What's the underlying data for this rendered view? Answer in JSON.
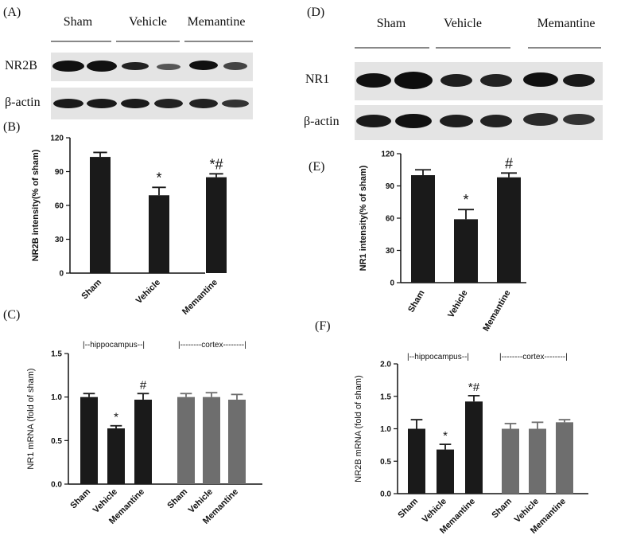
{
  "panels": {
    "A": {
      "label": "(A)",
      "groups": [
        "Sham",
        "Vehicle",
        "Memantine"
      ],
      "rows": [
        "NR2B",
        "β-actin"
      ]
    },
    "D": {
      "label": "(D)",
      "groups": [
        "Sham",
        "Vehicle",
        "Memantine"
      ],
      "rows": [
        "NR1",
        "β-actin"
      ]
    },
    "C": {
      "label": "(C)",
      "regions": [
        "|--hippocampus--|",
        "|--------cortex--------|"
      ]
    },
    "F": {
      "label": "(F)",
      "regions": [
        "|--hippocampus--|",
        "|--------cortex--------|"
      ]
    }
  },
  "colors": {
    "bar_black": "#1a1a1a",
    "bar_gray": "#6e6e6e",
    "axis": "#111111",
    "blot_bg": "#e4e4e4"
  },
  "chart_data": [
    {
      "id": "B",
      "type": "bar",
      "label": "(B)",
      "categories": [
        "Sham",
        "Vehicle",
        "Memantine"
      ],
      "values": [
        103,
        69,
        85
      ],
      "errors": [
        4,
        7,
        3
      ],
      "significance": [
        "",
        "*",
        "*#"
      ],
      "ylabel": "NR2B intensity(% of sham)",
      "ylim": [
        0,
        120
      ],
      "yticks": [
        0,
        30,
        60,
        90,
        120
      ]
    },
    {
      "id": "E",
      "type": "bar",
      "label": "(E)",
      "categories": [
        "Sham",
        "Vehicle",
        "Memantine"
      ],
      "values": [
        100,
        59,
        98
      ],
      "errors": [
        5,
        9,
        4
      ],
      "significance": [
        "",
        "*",
        "#"
      ],
      "ylabel": "NR1 intensity(% of sham)",
      "ylim": [
        0,
        120
      ],
      "yticks": [
        0,
        30,
        60,
        90,
        120
      ]
    },
    {
      "id": "C",
      "type": "bar",
      "categories": [
        "Sham",
        "Vehicle",
        "Memantine",
        "Sham",
        "Vehicle",
        "Memantine"
      ],
      "values": [
        1.0,
        0.64,
        0.97,
        1.0,
        1.0,
        0.97
      ],
      "errors": [
        0.04,
        0.03,
        0.07,
        0.04,
        0.05,
        0.06
      ],
      "significance": [
        "",
        "*",
        "#",
        "",
        "",
        ""
      ],
      "bar_colors": [
        "black",
        "black",
        "black",
        "gray",
        "gray",
        "gray"
      ],
      "ylabel": "NR1 mRNA (fold of sham)",
      "ylim": [
        0,
        1.5
      ],
      "yticks": [
        "0.0",
        "0.5",
        "1.0",
        "1.5"
      ]
    },
    {
      "id": "F",
      "type": "bar",
      "categories": [
        "Sham",
        "Vehicle",
        "Memantine",
        "Sham",
        "Vehicle",
        "Memantine"
      ],
      "values": [
        1.0,
        0.68,
        1.42,
        1.0,
        1.0,
        1.1
      ],
      "errors": [
        0.14,
        0.08,
        0.09,
        0.08,
        0.1,
        0.04
      ],
      "significance": [
        "",
        "*",
        "*#",
        "",
        "",
        ""
      ],
      "bar_colors": [
        "black",
        "black",
        "black",
        "gray",
        "gray",
        "gray"
      ],
      "ylabel": "NR2B mRNA (fold of sham)",
      "ylim": [
        0,
        2.0
      ],
      "yticks": [
        "0.0",
        "0.5",
        "1.0",
        "1.5",
        "2.0"
      ]
    }
  ]
}
